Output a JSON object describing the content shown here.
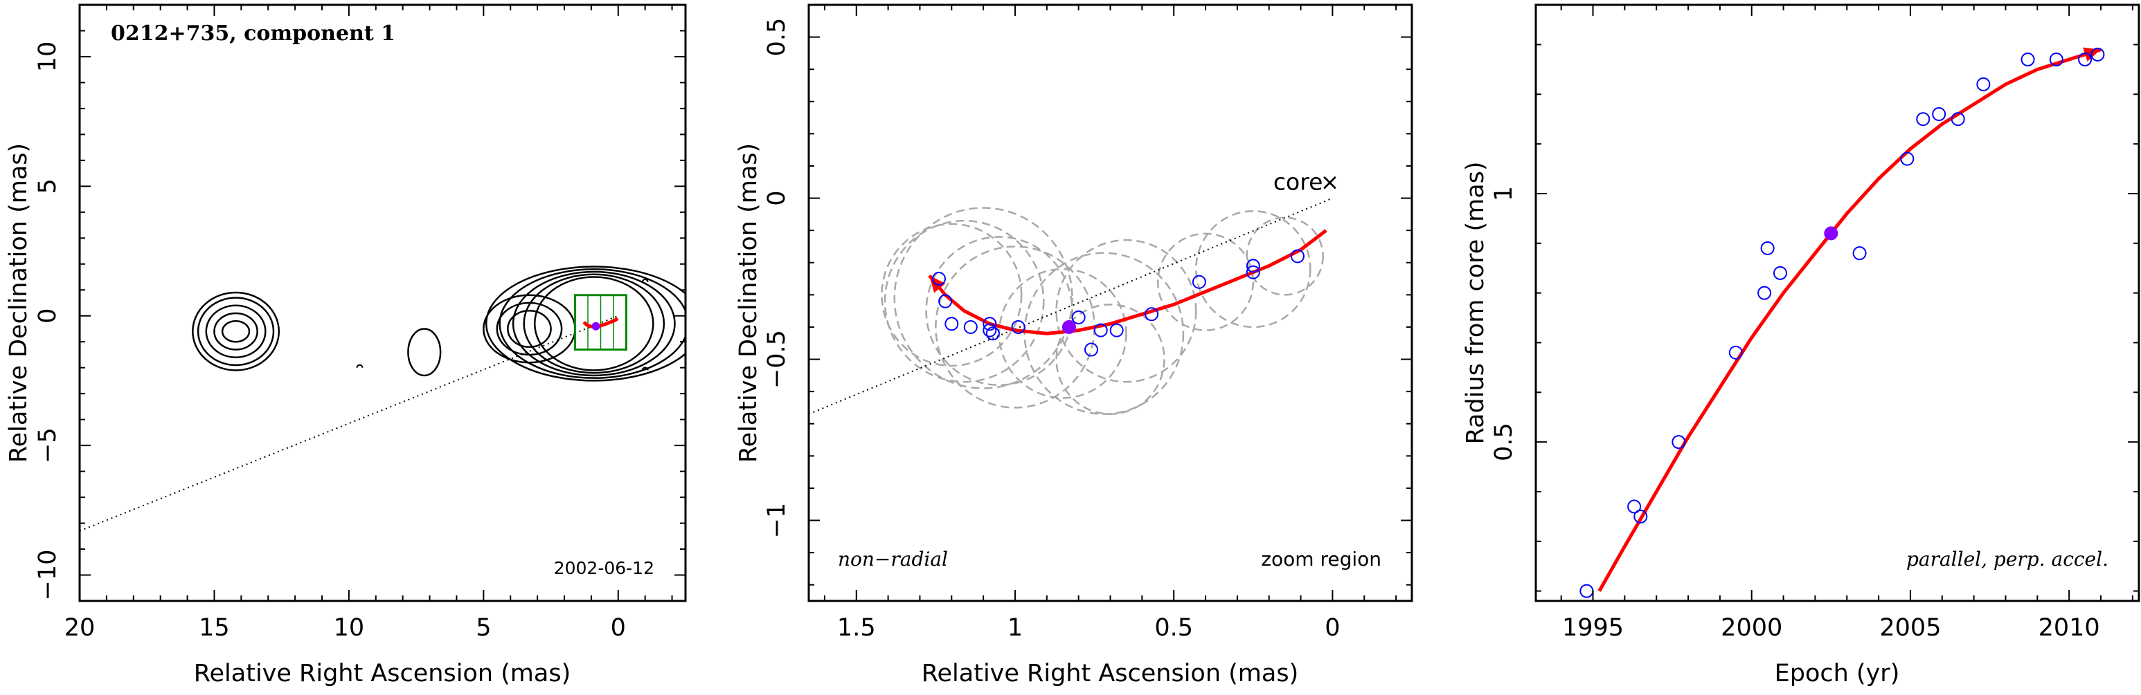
{
  "colors": {
    "fit": "#ff0000",
    "points": "#0000ff",
    "highlight": "#8800ff",
    "contour": "#000000",
    "green_box": "#008800",
    "circles": "#a8a8a8"
  },
  "chart_data": [
    {
      "type": "contour",
      "title": "0212+735, component 1",
      "date_label": "2002-06-12",
      "xlabel": "Relative Right Ascension (mas)",
      "ylabel": "Relative Declination (mas)",
      "xlim": [
        20,
        -2.5
      ],
      "ylim": [
        -11,
        12
      ],
      "xticks": [
        20,
        15,
        10,
        5,
        0
      ],
      "yticks": [
        -10,
        -5,
        0,
        5,
        10
      ],
      "contour_groups": [
        {
          "name": "core",
          "center": [
            0.9,
            -0.3
          ],
          "radii": [
            [
              2.2,
              1.8
            ],
            [
              2.6,
              1.9
            ],
            [
              3.0,
              2.0
            ],
            [
              3.5,
              2.1
            ],
            [
              4.0,
              2.2
            ]
          ]
        },
        {
          "name": "blob-14",
          "center": [
            14.2,
            -0.6
          ],
          "radii": [
            [
              0.5,
              0.4
            ],
            [
              0.8,
              0.7
            ],
            [
              1.1,
              1.0
            ],
            [
              1.4,
              1.3
            ],
            [
              1.6,
              1.5
            ]
          ]
        },
        {
          "name": "blob-7",
          "center": [
            7.2,
            -1.4
          ],
          "radii": [
            [
              0.6,
              0.9
            ]
          ]
        },
        {
          "name": "jet-3",
          "center": [
            3.3,
            -0.5
          ],
          "radii": [
            [
              0.8,
              0.7
            ],
            [
              1.2,
              1.0
            ],
            [
              1.7,
              1.3
            ]
          ]
        }
      ],
      "dotted_line": [
        [
          20,
          -8.3
        ],
        [
          0,
          0
        ]
      ],
      "green_box": [
        [
          1.6,
          0.8
        ],
        [
          -0.3,
          -1.3
        ]
      ]
    },
    {
      "type": "scatter",
      "xlabel": "Relative Right Ascension (mas)",
      "ylabel": "Relative Declination (mas)",
      "xlim": [
        1.65,
        -0.25
      ],
      "ylim": [
        -1.25,
        0.6
      ],
      "xticks": [
        1.5,
        1,
        0.5,
        0
      ],
      "yticks": [
        -1,
        -0.5,
        0,
        0.5
      ],
      "core_label": "core",
      "core_marker": "×",
      "label_left": "non−radial",
      "label_right": "zoom region",
      "points": [
        [
          1.24,
          -0.25
        ],
        [
          1.22,
          -0.32
        ],
        [
          1.2,
          -0.39
        ],
        [
          1.14,
          -0.4
        ],
        [
          1.08,
          -0.39
        ],
        [
          1.08,
          -0.41
        ],
        [
          1.07,
          -0.42
        ],
        [
          0.99,
          -0.4
        ],
        [
          0.8,
          -0.37
        ],
        [
          0.76,
          -0.47
        ],
        [
          0.73,
          -0.41
        ],
        [
          0.68,
          -0.41
        ],
        [
          0.57,
          -0.36
        ],
        [
          0.42,
          -0.26
        ],
        [
          0.25,
          -0.21
        ],
        [
          0.25,
          -0.23
        ],
        [
          0.11,
          -0.18
        ]
      ],
      "highlight": [
        0.83,
        -0.4
      ],
      "circles": [
        [
          1.2,
          -0.3,
          0.22
        ],
        [
          1.16,
          -0.32,
          0.25
        ],
        [
          1.1,
          -0.31,
          0.28
        ],
        [
          1.05,
          -0.35,
          0.23
        ],
        [
          1.0,
          -0.4,
          0.25
        ],
        [
          0.85,
          -0.42,
          0.2
        ],
        [
          0.72,
          -0.42,
          0.25
        ],
        [
          0.7,
          -0.5,
          0.17
        ],
        [
          0.65,
          -0.35,
          0.22
        ],
        [
          0.4,
          -0.26,
          0.15
        ],
        [
          0.25,
          -0.22,
          0.18
        ],
        [
          0.15,
          -0.18,
          0.12
        ]
      ],
      "fit_curve": [
        [
          1.27,
          -0.24
        ],
        [
          1.22,
          -0.3
        ],
        [
          1.16,
          -0.35
        ],
        [
          1.08,
          -0.39
        ],
        [
          1.0,
          -0.41
        ],
        [
          0.9,
          -0.42
        ],
        [
          0.8,
          -0.41
        ],
        [
          0.7,
          -0.39
        ],
        [
          0.6,
          -0.36
        ],
        [
          0.5,
          -0.33
        ],
        [
          0.4,
          -0.29
        ],
        [
          0.3,
          -0.25
        ],
        [
          0.2,
          -0.21
        ],
        [
          0.1,
          -0.16
        ],
        [
          0.02,
          -0.1
        ]
      ],
      "dotted_line": [
        [
          1.65,
          -0.67
        ],
        [
          0,
          0
        ]
      ]
    },
    {
      "type": "scatter",
      "xlabel": "Epoch (yr)",
      "ylabel": "Radius from core (mas)",
      "xlim": [
        1993.2,
        2012.2
      ],
      "ylim": [
        0.18,
        1.38
      ],
      "xticks": [
        1995,
        2000,
        2005,
        2010
      ],
      "yticks": [
        0.5,
        1
      ],
      "annotation": "parallel, perp. accel.",
      "points": [
        [
          1994.8,
          0.2
        ],
        [
          1996.3,
          0.37
        ],
        [
          1996.5,
          0.35
        ],
        [
          1997.7,
          0.5
        ],
        [
          1999.5,
          0.68
        ],
        [
          2000.4,
          0.8
        ],
        [
          2000.5,
          0.89
        ],
        [
          2000.9,
          0.84
        ],
        [
          2003.4,
          0.88
        ],
        [
          2004.9,
          1.07
        ],
        [
          2005.4,
          1.15
        ],
        [
          2005.9,
          1.16
        ],
        [
          2006.5,
          1.15
        ],
        [
          2007.3,
          1.22
        ],
        [
          2008.7,
          1.27
        ],
        [
          2009.6,
          1.27
        ],
        [
          2010.5,
          1.27
        ],
        [
          2010.9,
          1.28
        ]
      ],
      "highlight": [
        2002.5,
        0.92
      ],
      "fit_curve": [
        [
          1995.2,
          0.2
        ],
        [
          1996,
          0.29
        ],
        [
          1997,
          0.4
        ],
        [
          1998,
          0.51
        ],
        [
          1999,
          0.61
        ],
        [
          2000,
          0.71
        ],
        [
          2001,
          0.8
        ],
        [
          2002,
          0.88
        ],
        [
          2003,
          0.96
        ],
        [
          2004,
          1.03
        ],
        [
          2005,
          1.09
        ],
        [
          2006,
          1.14
        ],
        [
          2007,
          1.18
        ],
        [
          2008,
          1.22
        ],
        [
          2009,
          1.25
        ],
        [
          2010,
          1.27
        ],
        [
          2011,
          1.29
        ]
      ]
    }
  ]
}
